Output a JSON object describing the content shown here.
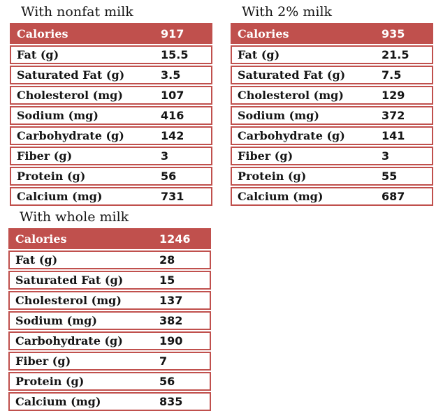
{
  "page": {
    "background": "#ffffff",
    "accent_color": "#c0504d",
    "row_border_color": "#c0504d",
    "text_color": "#141414",
    "header_text_color": "#ffffff"
  },
  "tables": [
    {
      "title": "With nonfat milk",
      "rows": [
        {
          "label": "Calories",
          "value": "917"
        },
        {
          "label": "Fat (g)",
          "value": "15.5"
        },
        {
          "label": "Saturated Fat (g)",
          "value": "3.5"
        },
        {
          "label": "Cholesterol (mg)",
          "value": "107"
        },
        {
          "label": "Sodium (mg)",
          "value": "416"
        },
        {
          "label": "Carbohydrate (g)",
          "value": "142"
        },
        {
          "label": "Fiber (g)",
          "value": "3"
        },
        {
          "label": "Protein (g)",
          "value": "56"
        },
        {
          "label": "Calcium (mg)",
          "value": "731"
        }
      ]
    },
    {
      "title": "With 2% milk",
      "rows": [
        {
          "label": "Calories",
          "value": "935"
        },
        {
          "label": "Fat (g)",
          "value": "21.5"
        },
        {
          "label": "Saturated Fat (g)",
          "value": "7.5"
        },
        {
          "label": "Cholesterol (mg)",
          "value": "129"
        },
        {
          "label": "Sodium (mg)",
          "value": "372"
        },
        {
          "label": "Carbohydrate (g)",
          "value": "141"
        },
        {
          "label": "Fiber (g)",
          "value": "3"
        },
        {
          "label": "Protein (g)",
          "value": "55"
        },
        {
          "label": "Calcium (mg)",
          "value": "687"
        }
      ]
    },
    {
      "title": "With whole milk",
      "rows": [
        {
          "label": "Calories",
          "value": "1246"
        },
        {
          "label": "Fat (g)",
          "value": "28"
        },
        {
          "label": "Saturated Fat (g)",
          "value": "15"
        },
        {
          "label": "Cholesterol (mg)",
          "value": "137"
        },
        {
          "label": "Sodium (mg)",
          "value": "382"
        },
        {
          "label": "Carbohydrate (g)",
          "value": "190"
        },
        {
          "label": "Fiber (g)",
          "value": "7"
        },
        {
          "label": "Protein (g)",
          "value": "56"
        },
        {
          "label": "Calcium (mg)",
          "value": "835"
        }
      ]
    }
  ]
}
